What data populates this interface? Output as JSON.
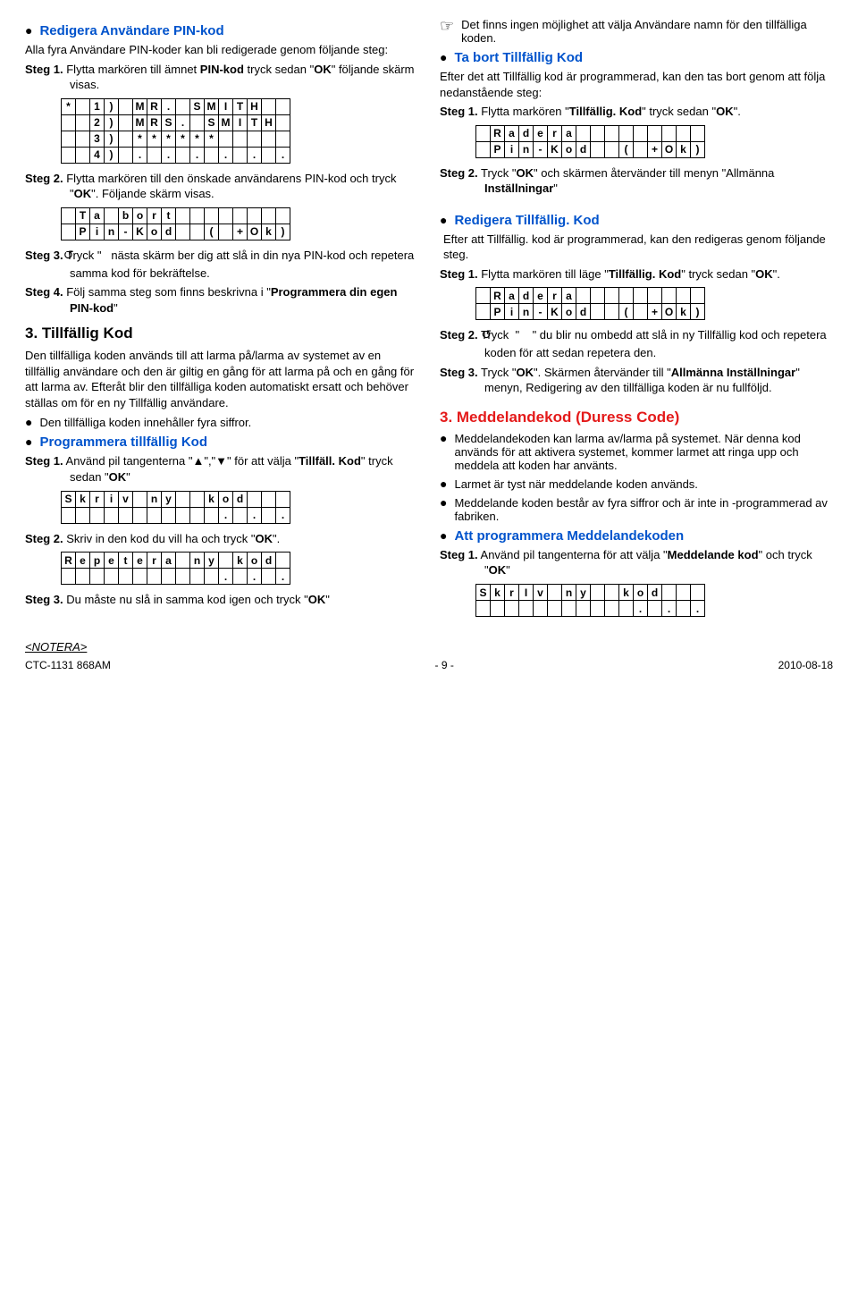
{
  "left": {
    "h1": "Redigera Användare PIN-kod",
    "p1": "Alla fyra Användare PIN-koder kan bli redigerade genom följande steg:",
    "s1": "Steg 1.  Flytta markören till ämnet PIN-kod tryck sedan \"OK\" följande skärm visas.",
    "lcd1": [
      [
        "*",
        " ",
        "1",
        ")",
        " ",
        "M",
        "R",
        ".",
        " ",
        "S",
        "M",
        "I",
        "T",
        "H",
        " ",
        " "
      ],
      [
        " ",
        " ",
        "2",
        ")",
        " ",
        "M",
        "R",
        "S",
        ".",
        " ",
        "S",
        "M",
        "I",
        "T",
        "H",
        " "
      ],
      [
        " ",
        " ",
        "3",
        ")",
        " ",
        "*",
        "*",
        "*",
        "*",
        "*",
        "*",
        " ",
        " ",
        " ",
        " ",
        " "
      ],
      [
        " ",
        " ",
        "4",
        ")",
        " ",
        ".",
        " ",
        ".",
        " ",
        ".",
        " ",
        ".",
        " ",
        ".",
        " ",
        "."
      ]
    ],
    "s2": "Steg 2.  Flytta markören till den önskade användarens PIN-kod och tryck \"OK\". Följande skärm visas.",
    "lcd2": [
      [
        " ",
        "T",
        "a",
        " ",
        "b",
        "o",
        "r",
        "t",
        " ",
        " ",
        " ",
        " ",
        " ",
        " ",
        " ",
        " "
      ],
      [
        " ",
        "P",
        "i",
        "n",
        "-",
        "K",
        "o",
        "d",
        " ",
        " ",
        "(",
        " ",
        "+",
        "O",
        "k",
        ")"
      ]
    ],
    "s3": "Steg 3.  Tryck \"   ↺  nästa skärm ber dig att slå in din nya PIN-kod och repetera samma kod för bekräftelse.",
    "s4": "Steg 4.  Följ samma steg som finns beskrivna i \"Programmera din egen PIN-kod\"",
    "h2": "3. Tillfällig Kod",
    "p2": "Den tillfälliga koden används till att larma på/larma av systemet av en tillfällig användare och den är giltig en gång för att larma på och en gång för att larma av. Efteråt blir den tillfälliga koden automatiskt ersatt och behöver ställas om för en ny Tillfällig användare.",
    "b1": "Den tillfälliga koden innehåller fyra siffror.",
    "h3": "Programmera tillfällig Kod",
    "s5": "Steg 1.  Använd pil tangenterna \"▲\",\"▼\" för att välja \"Tillfäll. Kod\" tryck sedan \"OK\"",
    "lcd3": [
      [
        "S",
        "k",
        "r",
        "i",
        "v",
        " ",
        "n",
        "y",
        " ",
        " ",
        "k",
        "o",
        "d",
        " ",
        " ",
        " "
      ],
      [
        " ",
        " ",
        " ",
        " ",
        " ",
        " ",
        " ",
        " ",
        " ",
        " ",
        " ",
        ".",
        " ",
        ".",
        " ",
        "."
      ]
    ],
    "s6": "Steg 2.  Skriv in den kod du vill ha och tryck \"OK\".",
    "lcd4": [
      [
        "R",
        "e",
        "p",
        "e",
        "t",
        "e",
        "r",
        "a",
        " ",
        "n",
        "y",
        " ",
        "k",
        "o",
        "d",
        " "
      ],
      [
        " ",
        " ",
        " ",
        " ",
        " ",
        " ",
        " ",
        " ",
        " ",
        " ",
        " ",
        ".",
        " ",
        ".",
        " ",
        "."
      ]
    ],
    "s7": "Steg 3.  Du måste nu slå in samma kod igen och tryck \"OK\""
  },
  "right": {
    "note1": "Det finns ingen möjlighet att välja Användare namn för den tillfälliga koden.",
    "h1": "Ta bort Tillfällig Kod",
    "p1": "Efter det att Tillfällig kod är programmerad, kan den tas bort genom att följa nedanstående steg:",
    "s1": "Steg 1.  Flytta markören \"Tillfällig. Kod\" tryck sedan \"OK\".",
    "lcd1": [
      [
        " ",
        "R",
        "a",
        "d",
        "e",
        "r",
        "a",
        " ",
        " ",
        " ",
        " ",
        " ",
        " ",
        " ",
        " ",
        " "
      ],
      [
        " ",
        "P",
        "i",
        "n",
        "-",
        "K",
        "o",
        "d",
        " ",
        " ",
        "(",
        " ",
        "+",
        "O",
        "k",
        ")"
      ]
    ],
    "s2": "Steg 2.  Tryck \"OK\" och skärmen återvänder till menyn \"Allmänna Inställningar\"",
    "h2": "Redigera Tillfällig. Kod",
    "p2": "Efter att Tillfällig. kod är programmerad, kan den redigeras genom följande steg.",
    "s3": "Steg 1.  Flytta markören till läge \"Tillfällig. Kod\" tryck sedan \"OK\".",
    "lcd2": [
      [
        " ",
        "R",
        "a",
        "d",
        "e",
        "r",
        "a",
        " ",
        " ",
        " ",
        " ",
        " ",
        " ",
        " ",
        " ",
        " "
      ],
      [
        " ",
        "P",
        "i",
        "n",
        "-",
        "K",
        "o",
        "d",
        " ",
        " ",
        "(",
        " ",
        "+",
        "O",
        "k",
        ")"
      ]
    ],
    "s4": "Steg 2.  Tryck  \"  ↺  \" du blir nu ombedd att slå in ny Tillfällig kod och repetera koden för att sedan repetera den.",
    "s5": "Steg 3.  Tryck \"OK\". Skärmen återvänder till \"Allmänna Inställningar\" menyn, Redigering av den tillfälliga koden är nu fullföljd.",
    "h3": "3. Meddelandekod (Duress Code)",
    "b1": "Meddelandekoden kan larma av/larma på systemet. När denna kod används för att aktivera systemet, kommer larmet att ringa upp och meddela att koden har använts.",
    "b2": "Larmet är tyst när meddelande koden används.",
    "b3": "Meddelande koden består av fyra siffror och är inte in -programmerad av fabriken.",
    "h4": "Att programmera Meddelandekoden",
    "s6": "Steg 1.  Använd pil tangenterna för att välja \"Meddelande kod\" och tryck \"OK\"",
    "lcd3": [
      [
        "S",
        "k",
        "r",
        "I",
        "v",
        " ",
        "n",
        "y",
        " ",
        " ",
        "k",
        "o",
        "d",
        " ",
        " ",
        " "
      ],
      [
        " ",
        " ",
        " ",
        " ",
        " ",
        " ",
        " ",
        " ",
        " ",
        " ",
        " ",
        ".",
        " ",
        ".",
        " ",
        "."
      ]
    ]
  },
  "footer": {
    "left": "CTC-1131 868AM",
    "mid": "- 9 -",
    "right": "2010-08-18"
  },
  "note": "<NOTERA>"
}
